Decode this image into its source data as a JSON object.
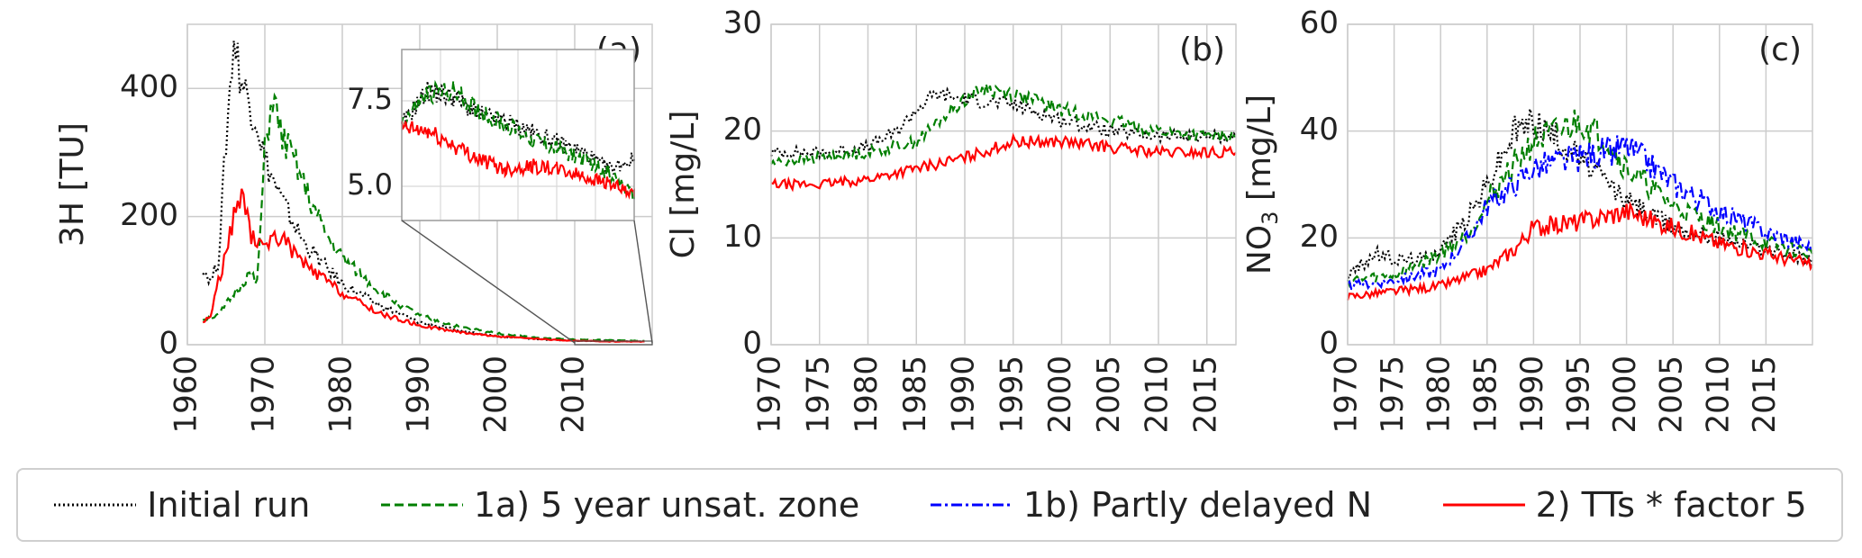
{
  "legend": {
    "items": [
      {
        "label": "Initial run",
        "color": "#000000",
        "style": "dotted"
      },
      {
        "label": "1a) 5 year unsat. zone",
        "color": "#007f00",
        "style": "dashed"
      },
      {
        "label": "1b) Partly delayed N",
        "color": "#0000ff",
        "style": "dashdot"
      },
      {
        "label": "2) TTs * factor 5",
        "color": "#ff0000",
        "style": "solid"
      }
    ]
  },
  "chart_data": [
    {
      "panel": "(a)",
      "type": "line",
      "ylabel": "3H [TU]",
      "xlim": [
        1960,
        2020
      ],
      "ylim": [
        0,
        500
      ],
      "xticks": [
        1960,
        1970,
        1980,
        1990,
        2000,
        2010
      ],
      "yticks": [
        0,
        200,
        400
      ],
      "grid": true,
      "series": [
        {
          "name": "Initial run",
          "color": "#000000",
          "style": "dotted",
          "x": [
            1962,
            1963,
            1964,
            1965,
            1966,
            1967,
            1968,
            1969,
            1970,
            1972,
            1975,
            1978,
            1980,
            1985,
            1990,
            1995,
            2000,
            2005,
            2010,
            2015,
            2019
          ],
          "y": [
            120,
            100,
            130,
            320,
            480,
            410,
            380,
            350,
            290,
            230,
            160,
            120,
            95,
            60,
            35,
            22,
            14,
            9,
            6,
            6,
            5
          ]
        },
        {
          "name": "1a) 5 year unsat. zone",
          "color": "#007f00",
          "style": "dashed",
          "x": [
            1962,
            1964,
            1966,
            1968,
            1969,
            1970,
            1971,
            1972,
            1974,
            1976,
            1978,
            1980,
            1985,
            1990,
            1995,
            2000,
            2005,
            2010,
            2015,
            2019
          ],
          "y": [
            40,
            45,
            80,
            110,
            95,
            300,
            390,
            330,
            280,
            220,
            170,
            135,
            80,
            45,
            28,
            18,
            11,
            8,
            7,
            6
          ]
        },
        {
          "name": "2) TTs * factor 5",
          "color": "#ff0000",
          "style": "solid",
          "x": [
            1962,
            1963,
            1964,
            1965,
            1966,
            1967,
            1968,
            1969,
            1970,
            1972,
            1974,
            1976,
            1978,
            1980,
            1985,
            1990,
            1995,
            2000,
            2005,
            2010,
            2015,
            2019
          ],
          "y": [
            35,
            45,
            100,
            140,
            200,
            240,
            180,
            150,
            160,
            170,
            140,
            115,
            100,
            80,
            48,
            30,
            20,
            13,
            9,
            6,
            5,
            5
          ]
        }
      ],
      "inset": {
        "xlim": [
          2010,
          2019
        ],
        "ylim": [
          4.0,
          9.0
        ],
        "yticks": [
          5.0,
          7.5
        ],
        "series": [
          {
            "name": "Initial run",
            "color": "#000000",
            "style": "dotted",
            "x": [
              2010,
              2011,
              2012,
              2013,
              2014,
              2015,
              2016,
              2017,
              2018,
              2019
            ],
            "y": [
              6.8,
              7.8,
              7.6,
              7.1,
              6.9,
              6.6,
              6.3,
              6.0,
              5.5,
              5.8
            ]
          },
          {
            "name": "1a) 5 year unsat. zone",
            "color": "#007f00",
            "style": "dashed",
            "x": [
              2010,
              2011,
              2012,
              2013,
              2014,
              2015,
              2016,
              2017,
              2018,
              2019
            ],
            "y": [
              6.9,
              7.7,
              7.8,
              7.2,
              6.8,
              6.4,
              6.1,
              5.8,
              5.4,
              4.7
            ]
          },
          {
            "name": "2) TTs * factor 5",
            "color": "#ff0000",
            "style": "solid",
            "x": [
              2010,
              2011,
              2012,
              2013,
              2014,
              2015,
              2016,
              2017,
              2018,
              2019
            ],
            "y": [
              6.7,
              6.6,
              6.2,
              5.8,
              5.5,
              5.6,
              5.5,
              5.3,
              5.1,
              4.7
            ]
          }
        ]
      }
    },
    {
      "panel": "(b)",
      "type": "line",
      "ylabel": "Cl [mg/L]",
      "xlim": [
        1970,
        2018
      ],
      "ylim": [
        0,
        30
      ],
      "xticks": [
        1970,
        1975,
        1980,
        1985,
        1990,
        1995,
        2000,
        2005,
        2010,
        2015
      ],
      "yticks": [
        0,
        10,
        20,
        30
      ],
      "grid": true,
      "series": [
        {
          "name": "Initial run",
          "color": "#000000",
          "style": "dotted",
          "x": [
            1970,
            1975,
            1980,
            1983,
            1985,
            1987,
            1990,
            1995,
            2000,
            2005,
            2010,
            2015,
            2018
          ],
          "y": [
            18,
            18,
            18.5,
            20,
            22,
            23.5,
            23,
            22.5,
            21,
            20,
            19.5,
            19.5,
            19.5
          ]
        },
        {
          "name": "1a) 5 year unsat. zone",
          "color": "#007f00",
          "style": "dashed",
          "x": [
            1970,
            1975,
            1980,
            1985,
            1988,
            1990,
            1992,
            1995,
            2000,
            2005,
            2010,
            2015,
            2018
          ],
          "y": [
            17,
            17.5,
            18,
            19,
            21.5,
            23,
            24,
            23.5,
            22,
            21,
            20,
            19.5,
            19.5
          ]
        },
        {
          "name": "2) TTs * factor 5",
          "color": "#ff0000",
          "style": "solid",
          "x": [
            1970,
            1975,
            1980,
            1985,
            1990,
            1995,
            2000,
            2005,
            2010,
            2015,
            2018
          ],
          "y": [
            15,
            15,
            15.5,
            16.5,
            17.5,
            19,
            19,
            18.5,
            18,
            18,
            18
          ]
        }
      ]
    },
    {
      "panel": "(c)",
      "type": "line",
      "ylabel": "NO3 [mg/L]",
      "xlim": [
        1970,
        2020
      ],
      "ylim": [
        0,
        60
      ],
      "xticks": [
        1970,
        1975,
        1980,
        1985,
        1990,
        1995,
        2000,
        2005,
        2010,
        2015
      ],
      "yticks": [
        0,
        20,
        40,
        60
      ],
      "grid": true,
      "series": [
        {
          "name": "Initial run",
          "color": "#000000",
          "style": "dotted",
          "x": [
            1970,
            1973,
            1975,
            1978,
            1980,
            1983,
            1985,
            1988,
            1990,
            1993,
            1995,
            2000,
            2005,
            2010,
            2015,
            2020
          ],
          "y": [
            13,
            17,
            16,
            16,
            18,
            24,
            30,
            40,
            42,
            38,
            35,
            27,
            22,
            20,
            18,
            16
          ]
        },
        {
          "name": "1a) 5 year unsat. zone",
          "color": "#007f00",
          "style": "dashed",
          "x": [
            1970,
            1975,
            1980,
            1983,
            1985,
            1988,
            1990,
            1993,
            1995,
            1998,
            2000,
            2005,
            2010,
            2015,
            2020
          ],
          "y": [
            12,
            13,
            17,
            21,
            27,
            34,
            38,
            40,
            42,
            38,
            33,
            26,
            22,
            19,
            17
          ]
        },
        {
          "name": "1b) Partly delayed N",
          "color": "#0000ff",
          "style": "dashdot",
          "x": [
            1970,
            1975,
            1980,
            1983,
            1985,
            1988,
            1990,
            1995,
            2000,
            2003,
            2005,
            2010,
            2015,
            2020
          ],
          "y": [
            11,
            12,
            14,
            20,
            26,
            30,
            33,
            35,
            37,
            33,
            30,
            25,
            21,
            18
          ]
        },
        {
          "name": "2) TTs * factor 5",
          "color": "#ff0000",
          "style": "solid",
          "x": [
            1970,
            1975,
            1980,
            1985,
            1988,
            1990,
            1995,
            2000,
            2005,
            2010,
            2015,
            2020
          ],
          "y": [
            9,
            10,
            11,
            14,
            18,
            22,
            23,
            25,
            22,
            19,
            17,
            15
          ]
        }
      ]
    }
  ]
}
